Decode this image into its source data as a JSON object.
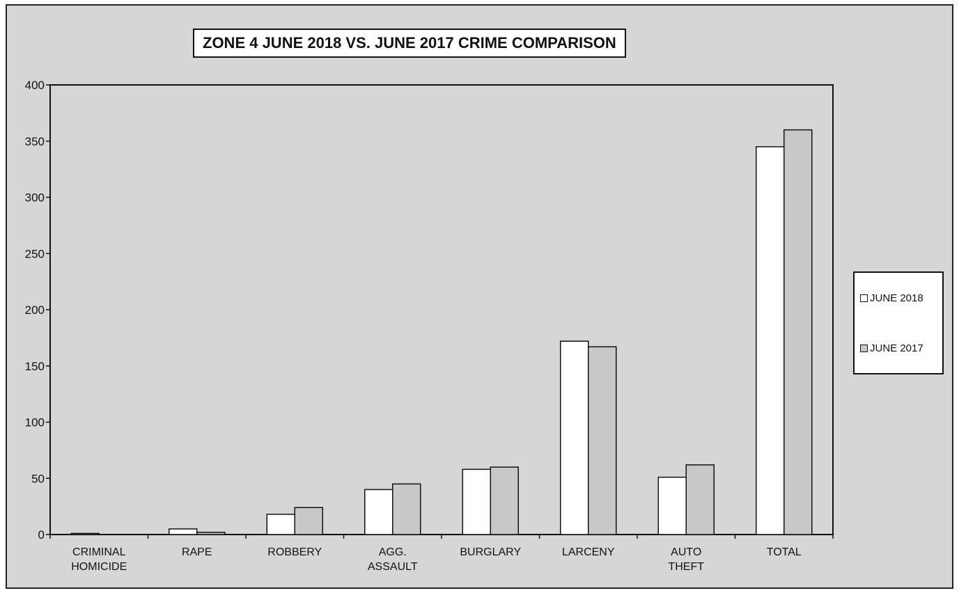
{
  "chart_data": {
    "type": "bar",
    "title": "ZONE 4  JUNE 2018 VS. JUNE 2017 CRIME COMPARISON",
    "categories": [
      [
        "CRIMINAL",
        "HOMICIDE"
      ],
      [
        "RAPE"
      ],
      [
        "ROBBERY"
      ],
      [
        "AGG.",
        "ASSAULT"
      ],
      [
        "BURGLARY"
      ],
      [
        "LARCENY"
      ],
      [
        "AUTO",
        "THEFT"
      ],
      [
        "TOTAL"
      ]
    ],
    "series": [
      {
        "name": "JUNE 2018",
        "color": "#ffffff",
        "values": [
          1,
          5,
          18,
          40,
          58,
          172,
          51,
          345
        ]
      },
      {
        "name": "JUNE 2017",
        "color": "#c8c8c8",
        "values": [
          0,
          2,
          24,
          45,
          60,
          167,
          62,
          360
        ]
      }
    ],
    "ylim": [
      0,
      400
    ],
    "yticks": [
      0,
      50,
      100,
      150,
      200,
      250,
      300,
      350,
      400
    ],
    "grid": false,
    "legend_position": "right",
    "plot_background": "#d6d6d6"
  }
}
